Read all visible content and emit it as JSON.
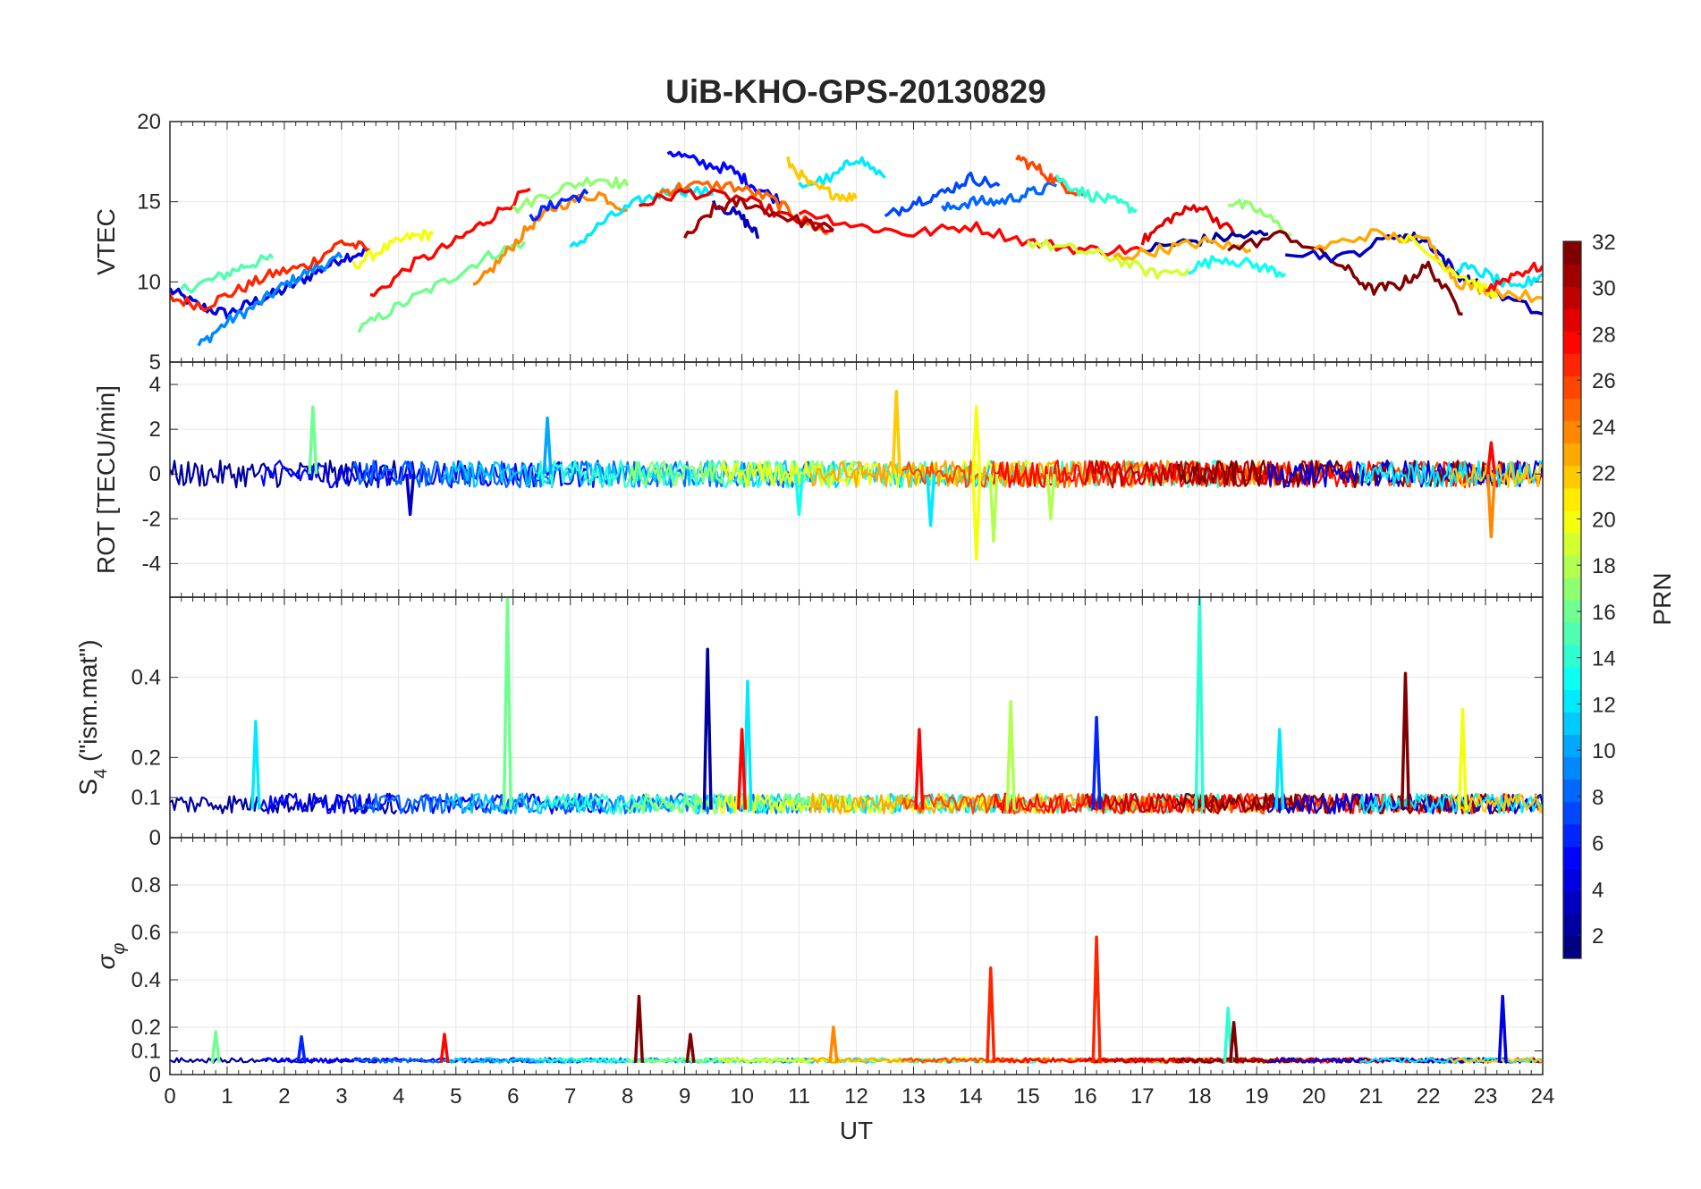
{
  "chart_data": [
    {
      "type": "line",
      "title": "UiB-KHO-GPS-20130829",
      "ylabel": "VTEC",
      "ylim": [
        5,
        20
      ],
      "yticks": [
        "5",
        "10",
        "15",
        "20"
      ],
      "xlim": [
        0,
        24
      ],
      "grid": true,
      "series_color_by": "PRN",
      "description_of_data": "Approximate per-satellite VTEC traces (colored by PRN)",
      "series": [
        {
          "prn": 4,
          "x": [
            0,
            0.5,
            1,
            1.5,
            2,
            2.5,
            3,
            3.5
          ],
          "y": [
            9.5,
            8.5,
            8.0,
            8.8,
            9.5,
            10.5,
            11.5,
            12.0
          ]
        },
        {
          "prn": 9,
          "x": [
            0.5,
            1,
            1.5,
            2,
            2.5,
            3
          ],
          "y": [
            6.0,
            7.5,
            8.5,
            9.8,
            10.8,
            11.5
          ]
        },
        {
          "prn": 15,
          "x": [
            0.2,
            0.8,
            1.3,
            1.8
          ],
          "y": [
            9.5,
            10.2,
            11.0,
            11.5
          ]
        },
        {
          "prn": 27,
          "x": [
            0,
            0.6,
            1.2,
            1.8,
            2.4,
            3.0,
            3.5
          ],
          "y": [
            9.0,
            8.5,
            9.5,
            10.5,
            11.0,
            12.5,
            12.0
          ]
        },
        {
          "prn": 20,
          "x": [
            3.2,
            3.7,
            4.2,
            4.6
          ],
          "y": [
            11.0,
            12.0,
            12.8,
            13.0
          ]
        },
        {
          "prn": 16,
          "x": [
            3.3,
            4.0,
            4.8,
            5.5,
            6.2
          ],
          "y": [
            7.0,
            8.5,
            10.0,
            11.5,
            12.5
          ]
        },
        {
          "prn": 28,
          "x": [
            3.5,
            4.2,
            5.0,
            5.6,
            6.3
          ],
          "y": [
            9.0,
            11.0,
            12.5,
            14.0,
            15.8
          ]
        },
        {
          "prn": 24,
          "x": [
            5.3,
            5.8,
            6.3,
            6.8,
            7.5,
            8.0
          ],
          "y": [
            9.5,
            11.5,
            13.5,
            14.8,
            15.5,
            14.5
          ]
        },
        {
          "prn": 17,
          "x": [
            6.0,
            6.8,
            7.5,
            8.0
          ],
          "y": [
            14.5,
            15.8,
            16.5,
            16.0
          ]
        },
        {
          "prn": 6,
          "x": [
            6.3,
            6.8,
            7.3
          ],
          "y": [
            14.0,
            15.0,
            15.5
          ]
        },
        {
          "prn": 12,
          "x": [
            7.0,
            7.6,
            8.2,
            8.8,
            9.5
          ],
          "y": [
            12.0,
            13.8,
            15.0,
            15.8,
            15.5
          ]
        },
        {
          "prn": 5,
          "x": [
            8.7,
            9.2,
            9.8,
            10.2,
            10.7
          ],
          "y": [
            18.2,
            17.5,
            17.0,
            16.0,
            15.0
          ]
        },
        {
          "prn": 3,
          "x": [
            9.5,
            10.0,
            10.3
          ],
          "y": [
            15.0,
            14.0,
            12.8
          ]
        },
        {
          "prn": 25,
          "x": [
            8.5,
            9.0,
            9.8,
            10.5,
            11.0,
            11.5
          ],
          "y": [
            15.5,
            16.0,
            16.0,
            15.2,
            14.0,
            13.0
          ]
        },
        {
          "prn": 29,
          "x": [
            8.2,
            9.0,
            10.0,
            10.8,
            11.6
          ],
          "y": [
            14.8,
            15.6,
            15.2,
            14.0,
            13.2
          ]
        },
        {
          "prn": 31,
          "x": [
            9.0,
            9.5,
            10.0,
            10.8,
            11.6
          ],
          "y": [
            12.6,
            14.5,
            15.0,
            14.0,
            13.2
          ]
        },
        {
          "prn": 12,
          "x": [
            11.0,
            11.6,
            12.0,
            12.5
          ],
          "y": [
            16.0,
            16.5,
            17.8,
            16.5
          ]
        },
        {
          "prn": 22,
          "x": [
            10.8,
            11.2,
            11.6,
            12.0
          ],
          "y": [
            17.5,
            16.0,
            15.5,
            15.2
          ]
        },
        {
          "prn": 28,
          "x": [
            11.0,
            12.0,
            13.0,
            14.0,
            15.0,
            16.0,
            17.0
          ],
          "y": [
            14.5,
            13.5,
            13.0,
            13.5,
            12.5,
            12.0,
            12.0
          ]
        },
        {
          "prn": 7,
          "x": [
            12.5,
            13.0,
            13.5,
            14.0,
            14.5
          ],
          "y": [
            14.0,
            15.0,
            15.5,
            16.5,
            16.0
          ]
        },
        {
          "prn": 8,
          "x": [
            13.5,
            14.0,
            14.5,
            15.0,
            15.5
          ],
          "y": [
            14.5,
            15.0,
            15.0,
            15.5,
            16.0
          ]
        },
        {
          "prn": 26,
          "x": [
            14.8,
            15.2,
            15.6,
            16.0
          ],
          "y": [
            17.8,
            17.0,
            16.0,
            15.5
          ]
        },
        {
          "prn": 14,
          "x": [
            15.5,
            16.0,
            16.5,
            16.9
          ],
          "y": [
            16.5,
            15.5,
            15.0,
            14.5
          ]
        },
        {
          "prn": 19,
          "x": [
            15.0,
            15.8,
            16.5,
            17.2,
            17.8
          ],
          "y": [
            12.5,
            12.0,
            11.5,
            10.5,
            10.8
          ]
        },
        {
          "prn": 29,
          "x": [
            17.0,
            17.5,
            18.0,
            18.6
          ],
          "y": [
            12.5,
            14.0,
            14.8,
            13.0
          ]
        },
        {
          "prn": 2,
          "x": [
            17.0,
            17.8,
            18.5,
            19.2
          ],
          "y": [
            12.0,
            12.5,
            12.8,
            13.0
          ]
        },
        {
          "prn": 23,
          "x": [
            16.5,
            17.3,
            18.1,
            18.9
          ],
          "y": [
            11.5,
            12.0,
            12.5,
            12.0
          ]
        },
        {
          "prn": 13,
          "x": [
            17.8,
            18.4,
            19.0,
            19.5
          ],
          "y": [
            10.8,
            11.5,
            11.0,
            10.5
          ]
        },
        {
          "prn": 17,
          "x": [
            18.5,
            19.0,
            19.6
          ],
          "y": [
            15.0,
            14.5,
            13.0
          ]
        },
        {
          "prn": 32,
          "x": [
            18.5,
            19.5,
            20.5,
            21.0,
            21.5,
            22.0,
            22.6
          ],
          "y": [
            12.0,
            13.0,
            11.0,
            9.5,
            9.8,
            11.0,
            8.0
          ]
        },
        {
          "prn": 3,
          "x": [
            19.5,
            20.5,
            21.5,
            22.0,
            22.5,
            23.0,
            24.0
          ],
          "y": [
            12.0,
            11.5,
            13.0,
            12.5,
            10.5,
            9.5,
            8.0
          ]
        },
        {
          "prn": 23,
          "x": [
            20.0,
            21.0,
            22.0,
            22.5,
            23.0,
            24.0
          ],
          "y": [
            12.0,
            13.0,
            12.5,
            10.0,
            9.5,
            9.0
          ]
        },
        {
          "prn": 20,
          "x": [
            21.5,
            22.3,
            22.8,
            23.2
          ],
          "y": [
            13.0,
            11.0,
            10.0,
            9.0
          ]
        },
        {
          "prn": 12,
          "x": [
            22.5,
            23.0,
            23.5,
            24.0
          ],
          "y": [
            11.0,
            10.5,
            9.5,
            10.5
          ]
        },
        {
          "prn": 28,
          "x": [
            23.0,
            23.5,
            24.0
          ],
          "y": [
            9.5,
            10.5,
            11.0
          ]
        }
      ]
    },
    {
      "type": "line",
      "ylabel": "ROT [TECU/min]",
      "ylim": [
        -5.5,
        5
      ],
      "yticks": [
        "-4",
        "-2",
        "0",
        "2",
        "4"
      ],
      "xlim": [
        0,
        24
      ],
      "grid": true,
      "description_of_data": "Rate of TEC fluctuating around 0 for all PRNs; notable spikes listed",
      "spikes": [
        {
          "x": 2.5,
          "y": 3.0,
          "prn": 16
        },
        {
          "x": 4.2,
          "y": -1.8,
          "prn": 3
        },
        {
          "x": 6.6,
          "y": 2.5,
          "prn": 10
        },
        {
          "x": 11.0,
          "y": -1.8,
          "prn": 13
        },
        {
          "x": 12.7,
          "y": 3.7,
          "prn": 22
        },
        {
          "x": 13.3,
          "y": -2.3,
          "prn": 12
        },
        {
          "x": 14.1,
          "y": 3.0,
          "prn": 20
        },
        {
          "x": 14.1,
          "y": -3.8,
          "prn": 20
        },
        {
          "x": 14.4,
          "y": -3.0,
          "prn": 18
        },
        {
          "x": 15.4,
          "y": -2.0,
          "prn": 18
        },
        {
          "x": 23.1,
          "y": -2.8,
          "prn": 24
        },
        {
          "x": 23.1,
          "y": 1.4,
          "prn": 28
        }
      ]
    },
    {
      "type": "line",
      "ylabel": "S4 (\"ism.mat\")",
      "ylabel_main": "S",
      "ylabel_sub": "4",
      "ylabel_rest": " (\"ism.mat\")",
      "ylim": [
        0,
        0.6
      ],
      "yticks": [
        "0",
        "0.1",
        "0.2",
        "0.4"
      ],
      "xlim": [
        0,
        24
      ],
      "grid": true,
      "description_of_data": "Amplitude scintillation index, baseline ~0.05-0.1, notable spikes listed",
      "spikes": [
        {
          "x": 1.5,
          "y": 0.29,
          "prn": 12
        },
        {
          "x": 5.9,
          "y": 0.6,
          "prn": 16
        },
        {
          "x": 9.4,
          "y": 0.47,
          "prn": 2
        },
        {
          "x": 10.1,
          "y": 0.39,
          "prn": 12
        },
        {
          "x": 10.0,
          "y": 0.27,
          "prn": 28
        },
        {
          "x": 13.1,
          "y": 0.27,
          "prn": 28
        },
        {
          "x": 14.7,
          "y": 0.34,
          "prn": 18
        },
        {
          "x": 16.2,
          "y": 0.3,
          "prn": 6
        },
        {
          "x": 18.0,
          "y": 0.6,
          "prn": 14
        },
        {
          "x": 19.4,
          "y": 0.27,
          "prn": 12
        },
        {
          "x": 21.6,
          "y": 0.41,
          "prn": 32
        },
        {
          "x": 22.6,
          "y": 0.32,
          "prn": 20
        }
      ]
    },
    {
      "type": "line",
      "ylabel": "σφ",
      "ylim": [
        0,
        1
      ],
      "yticks": [
        "0",
        "0.1",
        "0.2",
        "0.4",
        "0.6",
        "0.8"
      ],
      "xlim": [
        0,
        24
      ],
      "xticks": [
        "0",
        "1",
        "2",
        "3",
        "4",
        "5",
        "6",
        "7",
        "8",
        "9",
        "10",
        "11",
        "12",
        "13",
        "14",
        "15",
        "16",
        "17",
        "18",
        "19",
        "20",
        "21",
        "22",
        "23",
        "24"
      ],
      "xlabel": "UT",
      "grid": true,
      "description_of_data": "Phase scintillation index, baseline ~0.05, notable spikes listed",
      "spikes": [
        {
          "x": 0.8,
          "y": 0.18,
          "prn": 16
        },
        {
          "x": 2.3,
          "y": 0.16,
          "prn": 6
        },
        {
          "x": 4.8,
          "y": 0.17,
          "prn": 28
        },
        {
          "x": 8.2,
          "y": 0.33,
          "prn": 32
        },
        {
          "x": 9.1,
          "y": 0.17,
          "prn": 32
        },
        {
          "x": 11.6,
          "y": 0.2,
          "prn": 24
        },
        {
          "x": 14.35,
          "y": 0.45,
          "prn": 27
        },
        {
          "x": 16.2,
          "y": 0.58,
          "prn": 27
        },
        {
          "x": 18.5,
          "y": 0.28,
          "prn": 14
        },
        {
          "x": 18.6,
          "y": 0.22,
          "prn": 32
        },
        {
          "x": 23.3,
          "y": 0.33,
          "prn": 4
        }
      ]
    }
  ],
  "colorbar": {
    "label": "PRN",
    "range": [
      1,
      32
    ],
    "ticks": [
      "2",
      "4",
      "6",
      "8",
      "10",
      "12",
      "14",
      "16",
      "18",
      "20",
      "22",
      "24",
      "26",
      "28",
      "30",
      "32"
    ]
  }
}
